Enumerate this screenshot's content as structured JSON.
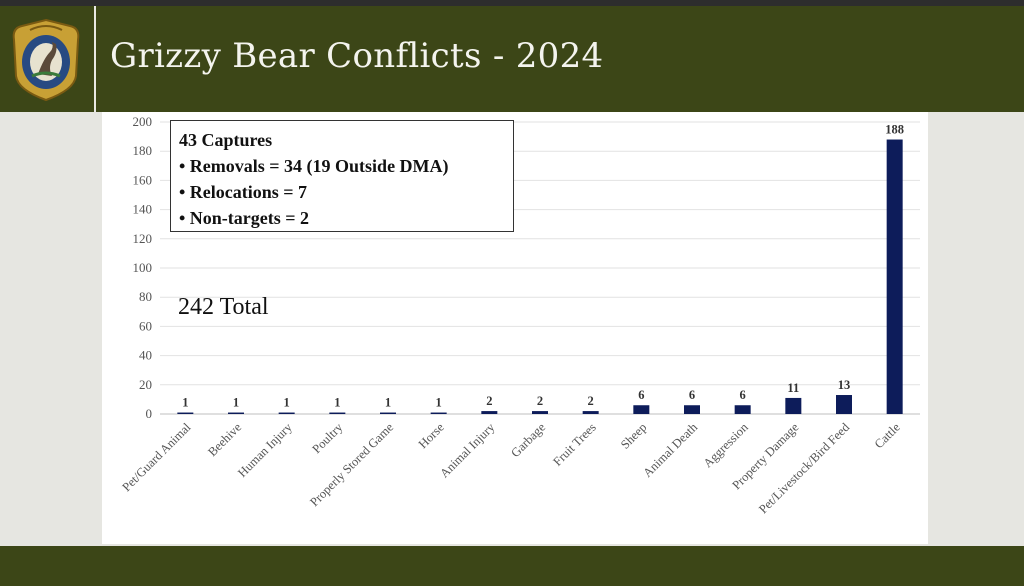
{
  "header": {
    "title": "Grizzy Bear Conflicts - 2024"
  },
  "annotation": {
    "lines": [
      "43 Captures",
      "• Removals = 34 (19 Outside DMA)",
      "• Relocations = 7",
      "• Non-targets = 2"
    ],
    "total": "242 Total"
  },
  "colors": {
    "header_bg": "#3c4617",
    "bar": "#0d1c5a"
  },
  "chart_data": {
    "type": "bar",
    "categories": [
      "Pet/Guard Animal",
      "Beehive",
      "Human Injury",
      "Poultry",
      "Properly Stored Game",
      "Horse",
      "Animal Injury",
      "Garbage",
      "Fruit Trees",
      "Sheep",
      "Animal Death",
      "Aggression",
      "Property Damage",
      "Pet/Livestock/Bird Feed",
      "Cattle"
    ],
    "values": [
      1,
      1,
      1,
      1,
      1,
      1,
      2,
      2,
      2,
      6,
      6,
      6,
      11,
      13,
      188
    ],
    "ylim": [
      0,
      200
    ],
    "yticks": [
      0,
      20,
      40,
      60,
      80,
      100,
      120,
      140,
      160,
      180,
      200
    ],
    "grid": true,
    "title": "",
    "xlabel": "",
    "ylabel": ""
  }
}
